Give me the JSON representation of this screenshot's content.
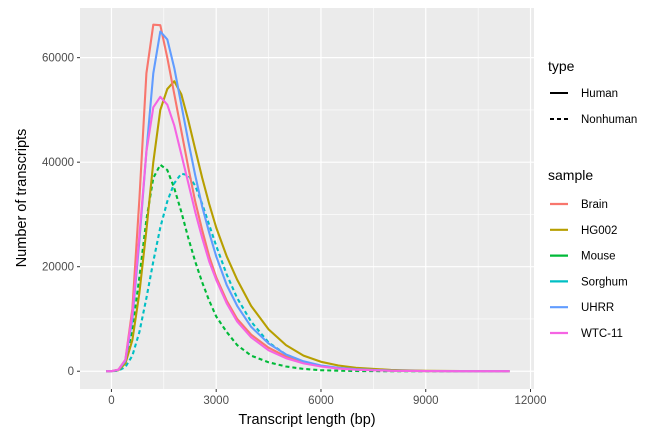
{
  "chart_data": {
    "type": "line",
    "title": "",
    "xlabel": "Transcript length (bp)",
    "ylabel": "Number of transcripts",
    "xlim": [
      -900,
      12100
    ],
    "ylim": [
      -3400,
      69500
    ],
    "grid": true,
    "x_ticks": [
      0,
      3000,
      6000,
      9000,
      12000
    ],
    "x_tick_labels": [
      "0",
      "3000",
      "6000",
      "9000",
      "12000"
    ],
    "y_ticks": [
      0,
      20000,
      40000,
      60000
    ],
    "y_tick_labels": [
      "0",
      "20000",
      "40000",
      "60000"
    ],
    "legend_position": "right",
    "legends": {
      "type": {
        "title": "type",
        "entries": [
          {
            "label": "Human",
            "dash": "solid"
          },
          {
            "label": "Nonhuman",
            "dash": "dashed"
          }
        ]
      },
      "sample": {
        "title": "sample",
        "entries": [
          {
            "label": "Brain",
            "color": "#F8766D"
          },
          {
            "label": "HG002",
            "color": "#B79F00"
          },
          {
            "label": "Mouse",
            "color": "#00BA38"
          },
          {
            "label": "Sorghum",
            "color": "#00BFC4"
          },
          {
            "label": "UHRR",
            "color": "#619CFF"
          },
          {
            "label": "WTC-11",
            "color": "#F564E3"
          }
        ]
      }
    },
    "series": [
      {
        "name": "Brain",
        "type": "Human",
        "color": "#F8766D",
        "dash": "solid",
        "x": [
          -150,
          0,
          200,
          400,
          600,
          800,
          1000,
          1200,
          1400,
          1600,
          1800,
          2000,
          2200,
          2400,
          2600,
          2800,
          3000,
          3300,
          3600,
          4000,
          4500,
          5000,
          5500,
          6000,
          6500,
          7000,
          8000,
          9000,
          10000,
          11400
        ],
        "y": [
          0,
          0,
          300,
          2200,
          12000,
          33000,
          57000,
          66300,
          66200,
          60000,
          53000,
          46000,
          39000,
          32500,
          27000,
          22000,
          18000,
          13500,
          10000,
          7000,
          4500,
          2800,
          1700,
          1000,
          600,
          350,
          100,
          30,
          10,
          0
        ]
      },
      {
        "name": "HG002",
        "type": "Human",
        "color": "#B79F00",
        "dash": "solid",
        "x": [
          -150,
          0,
          200,
          400,
          600,
          800,
          1000,
          1200,
          1400,
          1600,
          1800,
          2000,
          2200,
          2400,
          2600,
          2800,
          3000,
          3300,
          3600,
          4000,
          4500,
          5000,
          5500,
          6000,
          6500,
          7000,
          8000,
          9000,
          10000,
          11400
        ],
        "y": [
          0,
          0,
          200,
          1500,
          6000,
          15000,
          27000,
          40000,
          50000,
          54000,
          55500,
          53000,
          48000,
          42500,
          37000,
          32000,
          27500,
          22000,
          17500,
          12500,
          8000,
          5000,
          3000,
          1800,
          1100,
          650,
          250,
          80,
          20,
          0
        ]
      },
      {
        "name": "Mouse",
        "type": "Nonhuman",
        "color": "#00BA38",
        "dash": "dashed",
        "x": [
          -150,
          0,
          200,
          400,
          600,
          800,
          1000,
          1200,
          1400,
          1600,
          1800,
          2000,
          2200,
          2400,
          2600,
          2800,
          3000,
          3300,
          3600,
          4000,
          4500,
          5000,
          5500,
          6000,
          6500,
          7000,
          8000,
          9000,
          10000,
          11400
        ],
        "y": [
          0,
          0,
          300,
          2000,
          8000,
          18000,
          29000,
          37000,
          39500,
          38500,
          35000,
          30500,
          25500,
          21000,
          17000,
          13500,
          10500,
          7500,
          5000,
          3000,
          1700,
          900,
          450,
          200,
          100,
          50,
          10,
          0,
          0,
          0
        ]
      },
      {
        "name": "Sorghum",
        "type": "Nonhuman",
        "color": "#00BFC4",
        "dash": "dashed",
        "x": [
          -150,
          0,
          200,
          400,
          600,
          800,
          1000,
          1200,
          1400,
          1600,
          1800,
          2000,
          2200,
          2400,
          2600,
          2800,
          3000,
          3300,
          3600,
          4000,
          4500,
          5000,
          5500,
          6000,
          6500,
          7000,
          8000,
          9000,
          10000,
          11400
        ],
        "y": [
          0,
          0,
          100,
          800,
          3000,
          7500,
          14000,
          21000,
          27500,
          32500,
          36000,
          37800,
          37500,
          35500,
          32000,
          28000,
          24000,
          18500,
          14000,
          9500,
          5500,
          3200,
          1800,
          1000,
          550,
          300,
          80,
          20,
          5,
          0
        ]
      },
      {
        "name": "UHRR",
        "type": "Human",
        "color": "#619CFF",
        "dash": "solid",
        "x": [
          -150,
          0,
          200,
          400,
          600,
          800,
          1000,
          1200,
          1400,
          1600,
          1800,
          2000,
          2200,
          2400,
          2600,
          2800,
          3000,
          3300,
          3600,
          4000,
          4500,
          5000,
          5500,
          6000,
          6500,
          7000,
          8000,
          9000,
          10000,
          11400
        ],
        "y": [
          0,
          0,
          250,
          2000,
          10000,
          25000,
          42000,
          57000,
          65000,
          63500,
          58000,
          51000,
          44000,
          37500,
          31500,
          26500,
          22000,
          16500,
          12500,
          8500,
          5300,
          3200,
          1900,
          1100,
          650,
          380,
          120,
          40,
          10,
          0
        ]
      },
      {
        "name": "WTC-11",
        "type": "Human",
        "color": "#F564E3",
        "dash": "solid",
        "x": [
          -150,
          0,
          200,
          400,
          600,
          800,
          1000,
          1200,
          1400,
          1600,
          1800,
          2000,
          2200,
          2400,
          2600,
          2800,
          3000,
          3300,
          3600,
          4000,
          4500,
          5000,
          5500,
          6000,
          6500,
          7000,
          8000,
          9000,
          10000,
          11400
        ],
        "y": [
          0,
          0,
          300,
          2200,
          11000,
          26000,
          42000,
          50500,
          52500,
          51000,
          47000,
          41500,
          36000,
          30500,
          25500,
          21000,
          17500,
          13000,
          9500,
          6500,
          4000,
          2500,
          1500,
          900,
          500,
          300,
          90,
          25,
          5,
          0
        ]
      }
    ]
  }
}
